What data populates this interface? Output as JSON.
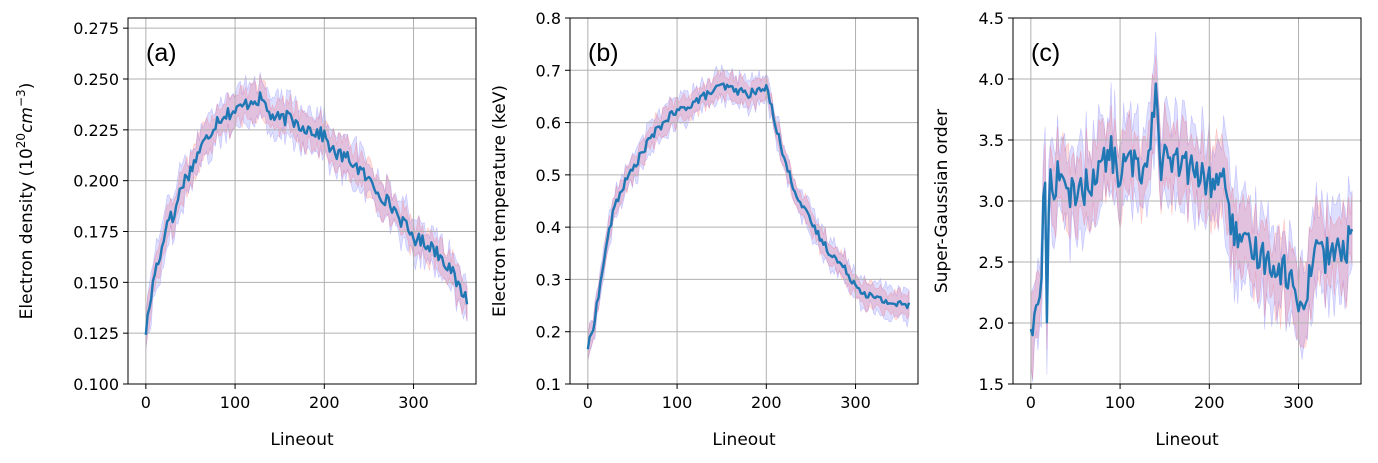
{
  "chart_data": [
    {
      "type": "line",
      "panel_label": "(a)",
      "xlabel": "Lineout",
      "ylabel_parts": [
        "Electron density (10",
        "20",
        "cm",
        "−3",
        ")"
      ],
      "xlim": [
        -20,
        370
      ],
      "ylim": [
        0.1,
        0.28
      ],
      "xticks": [
        0,
        100,
        200,
        300
      ],
      "yticks": [
        0.1,
        0.125,
        0.15,
        0.175,
        0.2,
        0.225,
        0.25,
        0.275
      ],
      "ytick_labels": [
        "0.100",
        "0.125",
        "0.150",
        "0.175",
        "0.200",
        "0.225",
        "0.250",
        "0.275"
      ],
      "grid": true,
      "noise": 0.0035,
      "band_blue": 0.009,
      "band_red": 0.007,
      "colors": {
        "line": "#1f77b4",
        "band_blue": "#0000ff",
        "band_red": "#ff0000"
      },
      "series": [
        {
          "x": [
            0,
            10,
            20,
            25,
            30,
            40,
            50,
            60,
            70,
            80,
            90,
            100,
            110,
            120,
            130,
            140,
            150,
            160,
            170,
            180,
            190,
            200,
            210,
            220,
            230,
            240,
            250,
            260,
            270,
            280,
            290,
            300,
            310,
            320,
            330,
            340,
            350,
            360
          ],
          "y": [
            0.126,
            0.155,
            0.17,
            0.185,
            0.18,
            0.198,
            0.205,
            0.215,
            0.222,
            0.23,
            0.233,
            0.234,
            0.237,
            0.24,
            0.24,
            0.232,
            0.23,
            0.231,
            0.228,
            0.226,
            0.224,
            0.222,
            0.214,
            0.212,
            0.21,
            0.205,
            0.2,
            0.195,
            0.19,
            0.185,
            0.178,
            0.172,
            0.17,
            0.168,
            0.163,
            0.158,
            0.148,
            0.142
          ]
        }
      ]
    },
    {
      "type": "line",
      "panel_label": "(b)",
      "xlabel": "Lineout",
      "ylabel": "Electron temperature (keV)",
      "xlim": [
        -20,
        370
      ],
      "ylim": [
        0.1,
        0.8
      ],
      "xticks": [
        0,
        100,
        200,
        300
      ],
      "yticks": [
        0.1,
        0.2,
        0.3,
        0.4,
        0.5,
        0.6,
        0.7,
        0.8
      ],
      "ytick_labels": [
        "0.1",
        "0.2",
        "0.3",
        "0.4",
        "0.5",
        "0.6",
        "0.7",
        "0.8"
      ],
      "grid": true,
      "noise": 0.008,
      "band_blue": 0.025,
      "band_red": 0.02,
      "colors": {
        "line": "#1f77b4",
        "band_blue": "#0000ff",
        "band_red": "#ff0000"
      },
      "series": [
        {
          "x": [
            0,
            5,
            10,
            15,
            20,
            25,
            30,
            40,
            50,
            60,
            70,
            80,
            90,
            100,
            110,
            120,
            130,
            140,
            150,
            160,
            170,
            180,
            190,
            200,
            205,
            210,
            220,
            230,
            240,
            250,
            260,
            270,
            280,
            290,
            300,
            310,
            320,
            330,
            340,
            350,
            360
          ],
          "y": [
            0.17,
            0.2,
            0.25,
            0.3,
            0.36,
            0.4,
            0.44,
            0.48,
            0.51,
            0.54,
            0.57,
            0.59,
            0.61,
            0.62,
            0.63,
            0.64,
            0.65,
            0.66,
            0.67,
            0.665,
            0.66,
            0.655,
            0.66,
            0.665,
            0.64,
            0.6,
            0.53,
            0.48,
            0.44,
            0.41,
            0.38,
            0.355,
            0.335,
            0.315,
            0.29,
            0.275,
            0.265,
            0.26,
            0.255,
            0.252,
            0.25
          ]
        }
      ]
    },
    {
      "type": "line",
      "panel_label": "(c)",
      "xlabel": "Lineout",
      "ylabel": "Super-Gaussian order",
      "xlim": [
        -20,
        370
      ],
      "ylim": [
        1.5,
        4.5
      ],
      "xticks": [
        0,
        100,
        200,
        300
      ],
      "yticks": [
        1.5,
        2.0,
        2.5,
        3.0,
        3.5,
        4.0,
        4.5
      ],
      "ytick_labels": [
        "1.5",
        "2.0",
        "2.5",
        "3.0",
        "3.5",
        "4.0",
        "4.5"
      ],
      "grid": true,
      "noise": 0.14,
      "band_blue": 0.32,
      "band_red": 0.25,
      "colors": {
        "line": "#1f77b4",
        "band_blue": "#0000ff",
        "band_red": "#ff0000"
      },
      "series": [
        {
          "x": [
            0,
            5,
            8,
            12,
            15,
            18,
            20,
            22,
            25,
            30,
            40,
            50,
            60,
            70,
            80,
            90,
            100,
            110,
            120,
            130,
            140,
            145,
            150,
            160,
            170,
            180,
            190,
            200,
            210,
            220,
            225,
            230,
            240,
            250,
            260,
            270,
            280,
            290,
            300,
            310,
            320,
            330,
            340,
            350,
            360
          ],
          "y": [
            2.0,
            2.0,
            2.2,
            2.3,
            3.5,
            2.1,
            3.0,
            3.2,
            3.0,
            3.3,
            3.0,
            3.1,
            3.1,
            3.2,
            3.3,
            3.4,
            3.2,
            3.35,
            3.25,
            3.3,
            3.95,
            3.3,
            3.35,
            3.3,
            3.3,
            3.25,
            3.2,
            3.15,
            3.2,
            3.1,
            2.8,
            2.7,
            2.6,
            2.6,
            2.55,
            2.5,
            2.45,
            2.4,
            2.1,
            2.3,
            2.7,
            2.55,
            2.6,
            2.55,
            2.75
          ]
        }
      ]
    }
  ]
}
